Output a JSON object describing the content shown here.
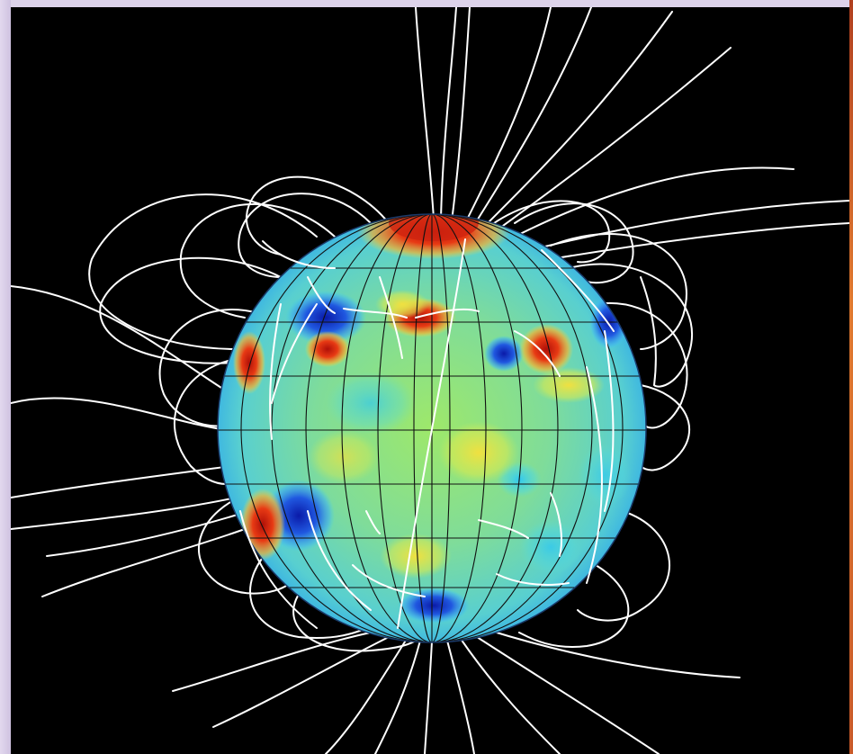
{
  "scene": {
    "subject": "star-magnetic-field-extrapolation",
    "background_color": "#000000",
    "frame_color": "#d8cde6",
    "field_line_color": "#ffffff",
    "grid_color": "#1a1a1a",
    "colormap": [
      "#1a2fd0",
      "#2fa0f0",
      "#4fe0e0",
      "#7fe8a0",
      "#b8ee60",
      "#f2e040",
      "#f08a20",
      "#d42010"
    ]
  }
}
